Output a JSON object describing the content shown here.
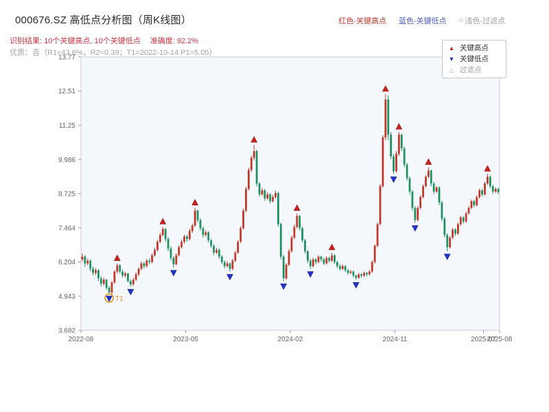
{
  "header": {
    "title": "000676.SZ 高低点分析图（周K线图）",
    "top_legend": [
      {
        "label": "红色-关键高点",
        "color": "#c0392b"
      },
      {
        "label": "蓝色-关键低点",
        "color": "#4a5bbf"
      },
      {
        "marker": "○",
        "label": "浅色-过滤点",
        "color": "#9aa0a6"
      }
    ],
    "result_line": {
      "text": "识别结果: 10个关键高点, 10个关键低点",
      "accuracy": "准确度: 92.2%",
      "color": "#cc3344"
    },
    "quality_line": {
      "text": "优质：否（R1=43.6%，R2=0.39；T1=2022-10-14 P1=5.05）",
      "color": "#a3a3a3"
    }
  },
  "legend_box": {
    "items": [
      {
        "icon": "▲",
        "label": "关键高点",
        "icon_color": "#c62828"
      },
      {
        "icon": "▼",
        "label": "关键低点",
        "icon_color": "#2433b8"
      },
      {
        "icon": "△",
        "label": "过滤点",
        "icon_color": "#aab0b6"
      }
    ]
  },
  "chart_data": {
    "type": "candlestick",
    "title": "000676.SZ 高低点分析图（周K线图）",
    "xlabel": "",
    "ylabel": "",
    "y_range": [
      3.682,
      13.77
    ],
    "y_ticks": [
      "3.682",
      "4.943",
      "6.204",
      "7.464",
      "8.725",
      "9.986",
      "11.25",
      "12.51",
      "13.77"
    ],
    "x_ticks": [
      {
        "index": 0,
        "label": "2022-08"
      },
      {
        "index": 39,
        "label": "2023-05"
      },
      {
        "index": 78,
        "label": "2024-02"
      },
      {
        "index": 117,
        "label": "2024-11"
      },
      {
        "index": 150,
        "label": "2025-07"
      },
      {
        "index": 156,
        "label": "2025-08"
      }
    ],
    "up_color": "#c0392b",
    "down_color": "#219161",
    "plot_bg": "#f4f7fb",
    "candles": [
      [
        6.3,
        6.52,
        6.22,
        6.4
      ],
      [
        6.4,
        6.46,
        6.02,
        6.15
      ],
      [
        6.15,
        6.33,
        6.08,
        6.25
      ],
      [
        6.25,
        6.3,
        5.86,
        5.95
      ],
      [
        5.95,
        6.04,
        5.7,
        5.8
      ],
      [
        5.8,
        5.98,
        5.72,
        5.9
      ],
      [
        5.9,
        5.94,
        5.5,
        5.6
      ],
      [
        5.6,
        5.68,
        5.3,
        5.4
      ],
      [
        5.4,
        5.63,
        5.33,
        5.55
      ],
      [
        5.55,
        5.58,
        5.18,
        5.25
      ],
      [
        5.25,
        5.32,
        5.05,
        5.08
      ],
      [
        5.08,
        5.5,
        5.02,
        5.45
      ],
      [
        5.45,
        5.9,
        5.4,
        5.85
      ],
      [
        5.85,
        6.15,
        5.78,
        6.08
      ],
      [
        6.08,
        6.12,
        5.78,
        5.85
      ],
      [
        5.85,
        5.92,
        5.62,
        5.7
      ],
      [
        5.7,
        5.84,
        5.64,
        5.78
      ],
      [
        5.78,
        5.8,
        5.44,
        5.5
      ],
      [
        5.5,
        5.56,
        5.3,
        5.38
      ],
      [
        5.38,
        5.62,
        5.32,
        5.55
      ],
      [
        5.55,
        5.82,
        5.5,
        5.75
      ],
      [
        5.75,
        6.0,
        5.68,
        5.95
      ],
      [
        5.95,
        6.22,
        5.9,
        6.15
      ],
      [
        6.15,
        6.2,
        5.96,
        6.05
      ],
      [
        6.05,
        6.32,
        6.0,
        6.25
      ],
      [
        6.25,
        6.33,
        6.12,
        6.2
      ],
      [
        6.2,
        6.52,
        6.15,
        6.45
      ],
      [
        6.45,
        6.73,
        6.4,
        6.65
      ],
      [
        6.65,
        7.02,
        6.6,
        6.95
      ],
      [
        6.95,
        7.28,
        6.9,
        7.2
      ],
      [
        7.2,
        7.5,
        7.14,
        7.42
      ],
      [
        7.42,
        7.46,
        6.95,
        7.05
      ],
      [
        7.05,
        7.12,
        6.6,
        6.7
      ],
      [
        6.7,
        6.78,
        6.26,
        6.35
      ],
      [
        6.35,
        6.42,
        6.0,
        6.12
      ],
      [
        6.12,
        6.52,
        6.08,
        6.45
      ],
      [
        6.45,
        6.82,
        6.4,
        6.75
      ],
      [
        6.75,
        7.03,
        6.7,
        6.95
      ],
      [
        6.95,
        7.22,
        6.88,
        7.15
      ],
      [
        7.15,
        7.2,
        6.95,
        7.05
      ],
      [
        7.05,
        7.43,
        7.0,
        7.35
      ],
      [
        7.35,
        7.62,
        7.28,
        7.55
      ],
      [
        7.55,
        8.2,
        7.5,
        8.1
      ],
      [
        8.1,
        8.14,
        7.66,
        7.75
      ],
      [
        7.75,
        7.82,
        7.36,
        7.45
      ],
      [
        7.45,
        7.52,
        7.1,
        7.2
      ],
      [
        7.2,
        7.38,
        7.14,
        7.3
      ],
      [
        7.3,
        7.34,
        6.92,
        7.0
      ],
      [
        7.0,
        7.06,
        6.72,
        6.8
      ],
      [
        6.8,
        6.86,
        6.46,
        6.55
      ],
      [
        6.55,
        6.73,
        6.5,
        6.65
      ],
      [
        6.65,
        6.7,
        6.32,
        6.4
      ],
      [
        6.4,
        6.46,
        6.12,
        6.2
      ],
      [
        6.2,
        6.26,
        5.96,
        6.05
      ],
      [
        6.05,
        6.23,
        6.0,
        6.15
      ],
      [
        6.15,
        6.18,
        5.85,
        5.95
      ],
      [
        5.95,
        6.32,
        5.9,
        6.25
      ],
      [
        6.25,
        6.62,
        6.2,
        6.55
      ],
      [
        6.55,
        7.02,
        6.5,
        6.95
      ],
      [
        6.95,
        7.52,
        6.9,
        7.45
      ],
      [
        7.45,
        8.18,
        7.4,
        8.1
      ],
      [
        8.1,
        8.98,
        8.04,
        8.9
      ],
      [
        8.9,
        9.68,
        8.84,
        9.6
      ],
      [
        9.6,
        10.12,
        9.52,
        10.05
      ],
      [
        10.05,
        10.52,
        9.95,
        10.3
      ],
      [
        10.3,
        10.35,
        9.0,
        9.1
      ],
      [
        9.1,
        9.16,
        8.62,
        8.7
      ],
      [
        8.7,
        8.93,
        8.64,
        8.85
      ],
      [
        8.85,
        8.9,
        8.46,
        8.55
      ],
      [
        8.55,
        8.78,
        8.5,
        8.7
      ],
      [
        8.7,
        8.74,
        8.36,
        8.45
      ],
      [
        8.45,
        8.68,
        8.4,
        8.6
      ],
      [
        8.6,
        8.83,
        8.54,
        8.75
      ],
      [
        8.75,
        8.8,
        7.5,
        7.6
      ],
      [
        7.6,
        7.66,
        6.3,
        6.4
      ],
      [
        6.4,
        6.46,
        5.5,
        5.6
      ],
      [
        5.6,
        6.16,
        5.55,
        6.1
      ],
      [
        6.1,
        6.68,
        6.05,
        6.6
      ],
      [
        6.6,
        7.18,
        6.55,
        7.1
      ],
      [
        7.1,
        7.58,
        7.05,
        7.5
      ],
      [
        7.5,
        8.0,
        7.44,
        7.9
      ],
      [
        7.9,
        7.94,
        7.36,
        7.45
      ],
      [
        7.45,
        7.5,
        6.92,
        7.0
      ],
      [
        7.0,
        7.06,
        6.52,
        6.6
      ],
      [
        6.6,
        6.65,
        6.16,
        6.25
      ],
      [
        6.25,
        6.32,
        5.95,
        6.05
      ],
      [
        6.05,
        6.36,
        6.0,
        6.3
      ],
      [
        6.3,
        6.34,
        6.12,
        6.2
      ],
      [
        6.2,
        6.46,
        6.15,
        6.4
      ],
      [
        6.4,
        6.44,
        6.22,
        6.3
      ],
      [
        6.3,
        6.35,
        6.08,
        6.15
      ],
      [
        6.15,
        6.41,
        6.1,
        6.35
      ],
      [
        6.35,
        6.4,
        6.18,
        6.25
      ],
      [
        6.25,
        6.55,
        6.2,
        6.45
      ],
      [
        6.45,
        6.5,
        6.12,
        6.2
      ],
      [
        6.2,
        6.25,
        5.98,
        6.05
      ],
      [
        6.05,
        6.12,
        5.88,
        5.95
      ],
      [
        5.95,
        6.11,
        5.9,
        6.05
      ],
      [
        6.05,
        6.09,
        5.83,
        5.9
      ],
      [
        5.9,
        5.95,
        5.72,
        5.8
      ],
      [
        5.8,
        5.91,
        5.76,
        5.85
      ],
      [
        5.85,
        5.89,
        5.63,
        5.7
      ],
      [
        5.7,
        5.74,
        5.55,
        5.62
      ],
      [
        5.62,
        5.8,
        5.58,
        5.75
      ],
      [
        5.75,
        5.79,
        5.62,
        5.7
      ],
      [
        5.7,
        5.85,
        5.66,
        5.8
      ],
      [
        5.8,
        5.84,
        5.68,
        5.75
      ],
      [
        5.75,
        5.9,
        5.7,
        5.85
      ],
      [
        5.85,
        6.26,
        5.8,
        6.2
      ],
      [
        6.2,
        6.86,
        6.15,
        6.8
      ],
      [
        6.8,
        7.66,
        6.75,
        7.6
      ],
      [
        7.6,
        9.08,
        7.55,
        9.0
      ],
      [
        9.0,
        10.88,
        8.95,
        10.8
      ],
      [
        10.8,
        12.4,
        10.7,
        12.2
      ],
      [
        12.2,
        12.35,
        10.7,
        10.9
      ],
      [
        10.9,
        11.0,
        10.0,
        10.1
      ],
      [
        10.1,
        10.2,
        9.45,
        9.55
      ],
      [
        9.55,
        10.3,
        9.5,
        10.2
      ],
      [
        10.2,
        11.0,
        10.12,
        10.9
      ],
      [
        10.9,
        10.95,
        10.3,
        10.4
      ],
      [
        10.4,
        10.46,
        9.7,
        9.8
      ],
      [
        9.8,
        9.86,
        9.2,
        9.3
      ],
      [
        9.3,
        9.36,
        8.7,
        8.8
      ],
      [
        8.8,
        8.86,
        8.1,
        8.2
      ],
      [
        8.2,
        8.26,
        7.65,
        7.75
      ],
      [
        7.75,
        8.26,
        7.7,
        8.2
      ],
      [
        8.2,
        8.66,
        8.15,
        8.6
      ],
      [
        8.6,
        9.06,
        8.55,
        9.0
      ],
      [
        9.0,
        9.41,
        8.95,
        9.35
      ],
      [
        9.35,
        9.7,
        9.3,
        9.58
      ],
      [
        9.58,
        9.62,
        9.0,
        9.1
      ],
      [
        9.1,
        9.16,
        8.7,
        8.8
      ],
      [
        8.8,
        9.01,
        8.75,
        8.95
      ],
      [
        8.95,
        9.0,
        8.3,
        8.4
      ],
      [
        8.4,
        8.46,
        7.7,
        7.8
      ],
      [
        7.8,
        7.86,
        7.1,
        7.2
      ],
      [
        7.2,
        7.26,
        6.6,
        6.75
      ],
      [
        6.75,
        7.16,
        6.7,
        7.1
      ],
      [
        7.1,
        7.46,
        7.05,
        7.4
      ],
      [
        7.4,
        7.45,
        7.16,
        7.25
      ],
      [
        7.25,
        7.66,
        7.2,
        7.6
      ],
      [
        7.6,
        7.91,
        7.55,
        7.85
      ],
      [
        7.85,
        7.9,
        7.62,
        7.7
      ],
      [
        7.7,
        8.06,
        7.65,
        8.0
      ],
      [
        8.0,
        8.26,
        7.95,
        8.2
      ],
      [
        8.2,
        8.51,
        8.15,
        8.45
      ],
      [
        8.45,
        8.5,
        8.22,
        8.3
      ],
      [
        8.3,
        8.66,
        8.25,
        8.6
      ],
      [
        8.6,
        8.91,
        8.55,
        8.85
      ],
      [
        8.85,
        8.9,
        8.62,
        8.7
      ],
      [
        8.7,
        9.16,
        8.65,
        9.1
      ],
      [
        9.1,
        9.45,
        9.05,
        9.35
      ],
      [
        9.35,
        9.4,
        8.92,
        9.0
      ],
      [
        9.0,
        9.06,
        8.72,
        8.8
      ],
      [
        8.8,
        8.96,
        8.75,
        8.9
      ],
      [
        8.9,
        8.95,
        8.7,
        8.78
      ]
    ],
    "key_highs": [
      {
        "index": 13,
        "price": 6.15
      },
      {
        "index": 30,
        "price": 7.5
      },
      {
        "index": 42,
        "price": 8.2
      },
      {
        "index": 64,
        "price": 10.52
      },
      {
        "index": 80,
        "price": 8.0
      },
      {
        "index": 93,
        "price": 6.55
      },
      {
        "index": 113,
        "price": 12.4
      },
      {
        "index": 118,
        "price": 11.0
      },
      {
        "index": 129,
        "price": 9.7
      },
      {
        "index": 151,
        "price": 9.45
      }
    ],
    "key_lows": [
      {
        "index": 10,
        "price": 5.05
      },
      {
        "index": 18,
        "price": 5.3
      },
      {
        "index": 34,
        "price": 6.0
      },
      {
        "index": 55,
        "price": 5.85
      },
      {
        "index": 75,
        "price": 5.5
      },
      {
        "index": 85,
        "price": 5.95
      },
      {
        "index": 102,
        "price": 5.55
      },
      {
        "index": 116,
        "price": 9.45
      },
      {
        "index": 124,
        "price": 7.65
      },
      {
        "index": 136,
        "price": 6.6
      }
    ],
    "t1_annotation": {
      "index": 10,
      "price": 5.05,
      "label": "T1",
      "color": "#e59419"
    },
    "marker_high_color": "#cc1f1f",
    "marker_low_color": "#2433cc",
    "legend_position": "top-right",
    "grid": false
  }
}
